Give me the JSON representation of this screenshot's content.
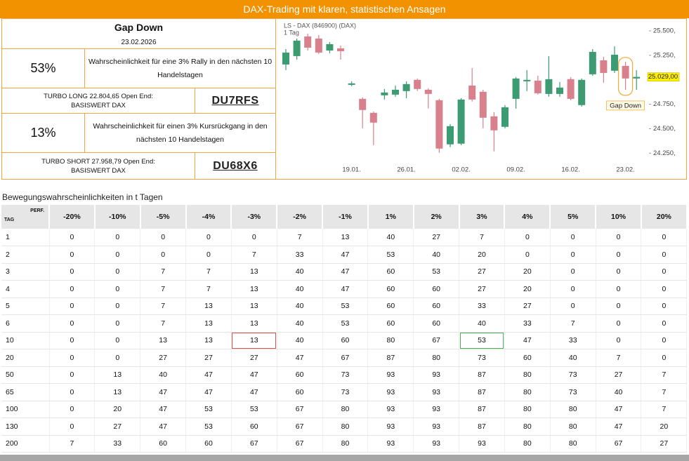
{
  "header": {
    "title": "DAX-Trading mit klaren, statistischen Ansagen"
  },
  "signal": {
    "title": "Gap Down",
    "date": "23.02.2026",
    "rally_probability": "53%",
    "rally_text": "Wahrscheinlichkeit für eine 3% Rally in den nächsten 10 Handelstagen",
    "long_product": [
      "TURBO LONG 22.804,65 Open End:",
      "BASISWERT DAX"
    ],
    "long_code": "DU7RFS",
    "decline_probability": "13%",
    "decline_text": "Wahrscheinlichkeit für einen 3% Kursrückgang in den nächsten 10 Handelstagen",
    "short_product": [
      "TURBO SHORT 27.958,79 Open End:",
      "BASISWERT DAX"
    ],
    "short_code": "DU68X6"
  },
  "chart_data": {
    "type": "candlestick",
    "title": "LS - DAX (846900) (DAX)",
    "subtitle": "1 Tag",
    "categories": [
      null,
      null,
      null,
      null,
      null,
      null,
      "19.01.",
      null,
      null,
      null,
      null,
      "26.01.",
      null,
      null,
      null,
      null,
      "02.02.",
      null,
      null,
      null,
      null,
      "09.02.",
      null,
      null,
      null,
      null,
      "16.02.",
      null,
      null,
      null,
      null,
      "23.02.",
      null
    ],
    "open": [
      25156,
      25242,
      25443,
      25421,
      25299,
      25321,
      24948,
      24805,
      24662,
      24841,
      24848,
      24884,
      24999,
      24898,
      24791,
      24340,
      24347,
      24941,
      24877,
      24626,
      24519,
      24805,
      24984,
      24991,
      24855,
      24855,
      25006,
      24741,
      25056,
      25199,
      25092,
      25142,
      25013
    ],
    "high": [
      25314,
      25421,
      25471,
      25457,
      25385,
      25350,
      24984,
      24820,
      24676,
      24906,
      24941,
      24984,
      25013,
      24913,
      24805,
      24547,
      24812,
      25120,
      24898,
      24669,
      24741,
      25027,
      25099,
      25042,
      25242,
      24977,
      25027,
      25013,
      25314,
      25235,
      25342,
      25185,
      25099
    ],
    "low": [
      25099,
      25206,
      25299,
      25264,
      25271,
      25206,
      24934,
      24504,
      24332,
      24798,
      24827,
      24812,
      24884,
      24705,
      24254,
      24311,
      24332,
      24777,
      24504,
      24268,
      24504,
      24705,
      24884,
      24848,
      24827,
      24827,
      24791,
      24726,
      25042,
      24970,
      25070,
      24898,
      24898
    ],
    "close": [
      25278,
      25400,
      25328,
      25278,
      25364,
      25292,
      24963,
      24691,
      24562,
      24870,
      24898,
      24956,
      24906,
      24855,
      24297,
      24526,
      24798,
      24798,
      24612,
      24483,
      24719,
      25013,
      24999,
      24862,
      25006,
      24920,
      24805,
      24999,
      25285,
      25070,
      25256,
      25013,
      25029
    ],
    "up_color": "#3d9b73",
    "down_color": "#d8808c",
    "ylim": [
      24130,
      25600
    ],
    "yticks": [
      {
        "value": 24250,
        "label": "24.250,"
      },
      {
        "value": 24500,
        "label": "24.500,"
      },
      {
        "value": 24750,
        "label": "24.750,"
      },
      {
        "value": 25250,
        "label": "25.250,"
      },
      {
        "value": 25500,
        "label": "25.500,"
      }
    ],
    "last_price": {
      "value": 25029,
      "label": "25.029,00"
    },
    "annotation": "Gap Down"
  },
  "table": {
    "caption": "Bewegungswahrscheinlichkeiten in t Tagen",
    "corner": {
      "perf": "PERF.",
      "tag": "TAG"
    },
    "columns": [
      "-20%",
      "-10%",
      "-5%",
      "-4%",
      "-3%",
      "-2%",
      "-1%",
      "1%",
      "2%",
      "3%",
      "4%",
      "5%",
      "10%",
      "20%"
    ],
    "rows": [
      [
        1,
        0,
        0,
        0,
        0,
        0,
        7,
        13,
        40,
        27,
        7,
        0,
        0,
        0,
        0
      ],
      [
        2,
        0,
        0,
        0,
        0,
        7,
        33,
        47,
        53,
        40,
        20,
        0,
        0,
        0,
        0
      ],
      [
        3,
        0,
        0,
        7,
        7,
        13,
        40,
        47,
        60,
        53,
        27,
        20,
        0,
        0,
        0
      ],
      [
        4,
        0,
        0,
        7,
        7,
        13,
        40,
        47,
        60,
        60,
        27,
        20,
        0,
        0,
        0
      ],
      [
        5,
        0,
        0,
        7,
        13,
        13,
        40,
        53,
        60,
        60,
        33,
        27,
        0,
        0,
        0
      ],
      [
        6,
        0,
        0,
        7,
        13,
        13,
        40,
        53,
        60,
        60,
        40,
        33,
        7,
        0,
        0
      ],
      [
        10,
        0,
        0,
        13,
        13,
        13,
        40,
        60,
        80,
        67,
        53,
        47,
        33,
        0,
        0
      ],
      [
        20,
        0,
        0,
        27,
        27,
        27,
        47,
        67,
        87,
        80,
        73,
        60,
        40,
        7,
        0
      ],
      [
        50,
        0,
        13,
        40,
        47,
        47,
        60,
        73,
        93,
        93,
        87,
        80,
        73,
        27,
        7
      ],
      [
        65,
        0,
        13,
        47,
        47,
        47,
        60,
        73,
        93,
        93,
        87,
        80,
        73,
        40,
        7
      ],
      [
        100,
        0,
        20,
        47,
        53,
        53,
        67,
        80,
        93,
        93,
        87,
        80,
        80,
        47,
        7
      ],
      [
        130,
        0,
        27,
        47,
        53,
        60,
        67,
        80,
        93,
        93,
        87,
        80,
        80,
        47,
        20
      ],
      [
        200,
        7,
        33,
        60,
        60,
        67,
        67,
        80,
        93,
        93,
        93,
        80,
        80,
        67,
        27
      ]
    ]
  }
}
